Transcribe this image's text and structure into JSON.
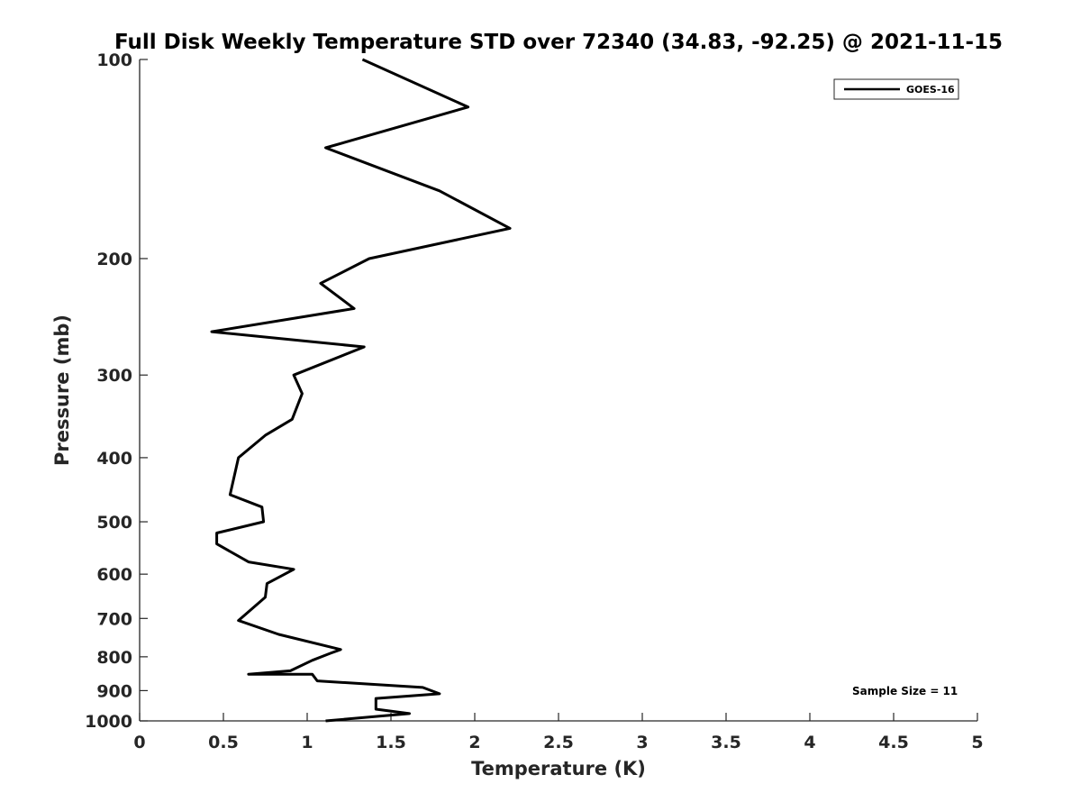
{
  "chart_data": {
    "type": "line",
    "title": "Full Disk Weekly Temperature STD over 72340 (34.83, -92.25) @ 2021-11-15",
    "xlabel": "Temperature (K)",
    "ylabel": "Pressure (mb)",
    "xlim": [
      0,
      5
    ],
    "ylim": [
      100,
      1000
    ],
    "y_scale": "log",
    "y_reversed": true,
    "grid": false,
    "legend_position": "top-right",
    "x_ticks": [
      "0",
      "0.5",
      "1",
      "1.5",
      "2",
      "2.5",
      "3",
      "3.5",
      "4",
      "4.5",
      "5"
    ],
    "y_ticks": [
      "100",
      "200",
      "300",
      "400",
      "500",
      "600",
      "700",
      "800",
      "900",
      "1000"
    ],
    "annotation": "Sample Size = 11",
    "series": [
      {
        "name": "GOES-16",
        "color": "#000000",
        "x": [
          1.33,
          1.96,
          1.11,
          1.79,
          2.21,
          1.37,
          1.08,
          1.28,
          0.43,
          1.34,
          0.92,
          0.97,
          0.91,
          0.75,
          0.59,
          0.54,
          0.73,
          0.74,
          0.46,
          0.46,
          0.65,
          0.92,
          0.76,
          0.75,
          0.59,
          0.83,
          1.2,
          1.14,
          1.03,
          0.9,
          0.65,
          1.03,
          1.06,
          1.69,
          1.79,
          1.41,
          1.41,
          1.61,
          1.11
        ],
        "y": [
          100,
          118,
          136,
          158,
          180,
          200,
          218,
          238,
          258,
          272,
          300,
          320,
          350,
          370,
          400,
          455,
          475,
          500,
          520,
          540,
          575,
          590,
          620,
          650,
          705,
          740,
          780,
          790,
          810,
          840,
          850,
          850,
          870,
          890,
          910,
          925,
          960,
          975,
          1000
        ]
      }
    ]
  }
}
